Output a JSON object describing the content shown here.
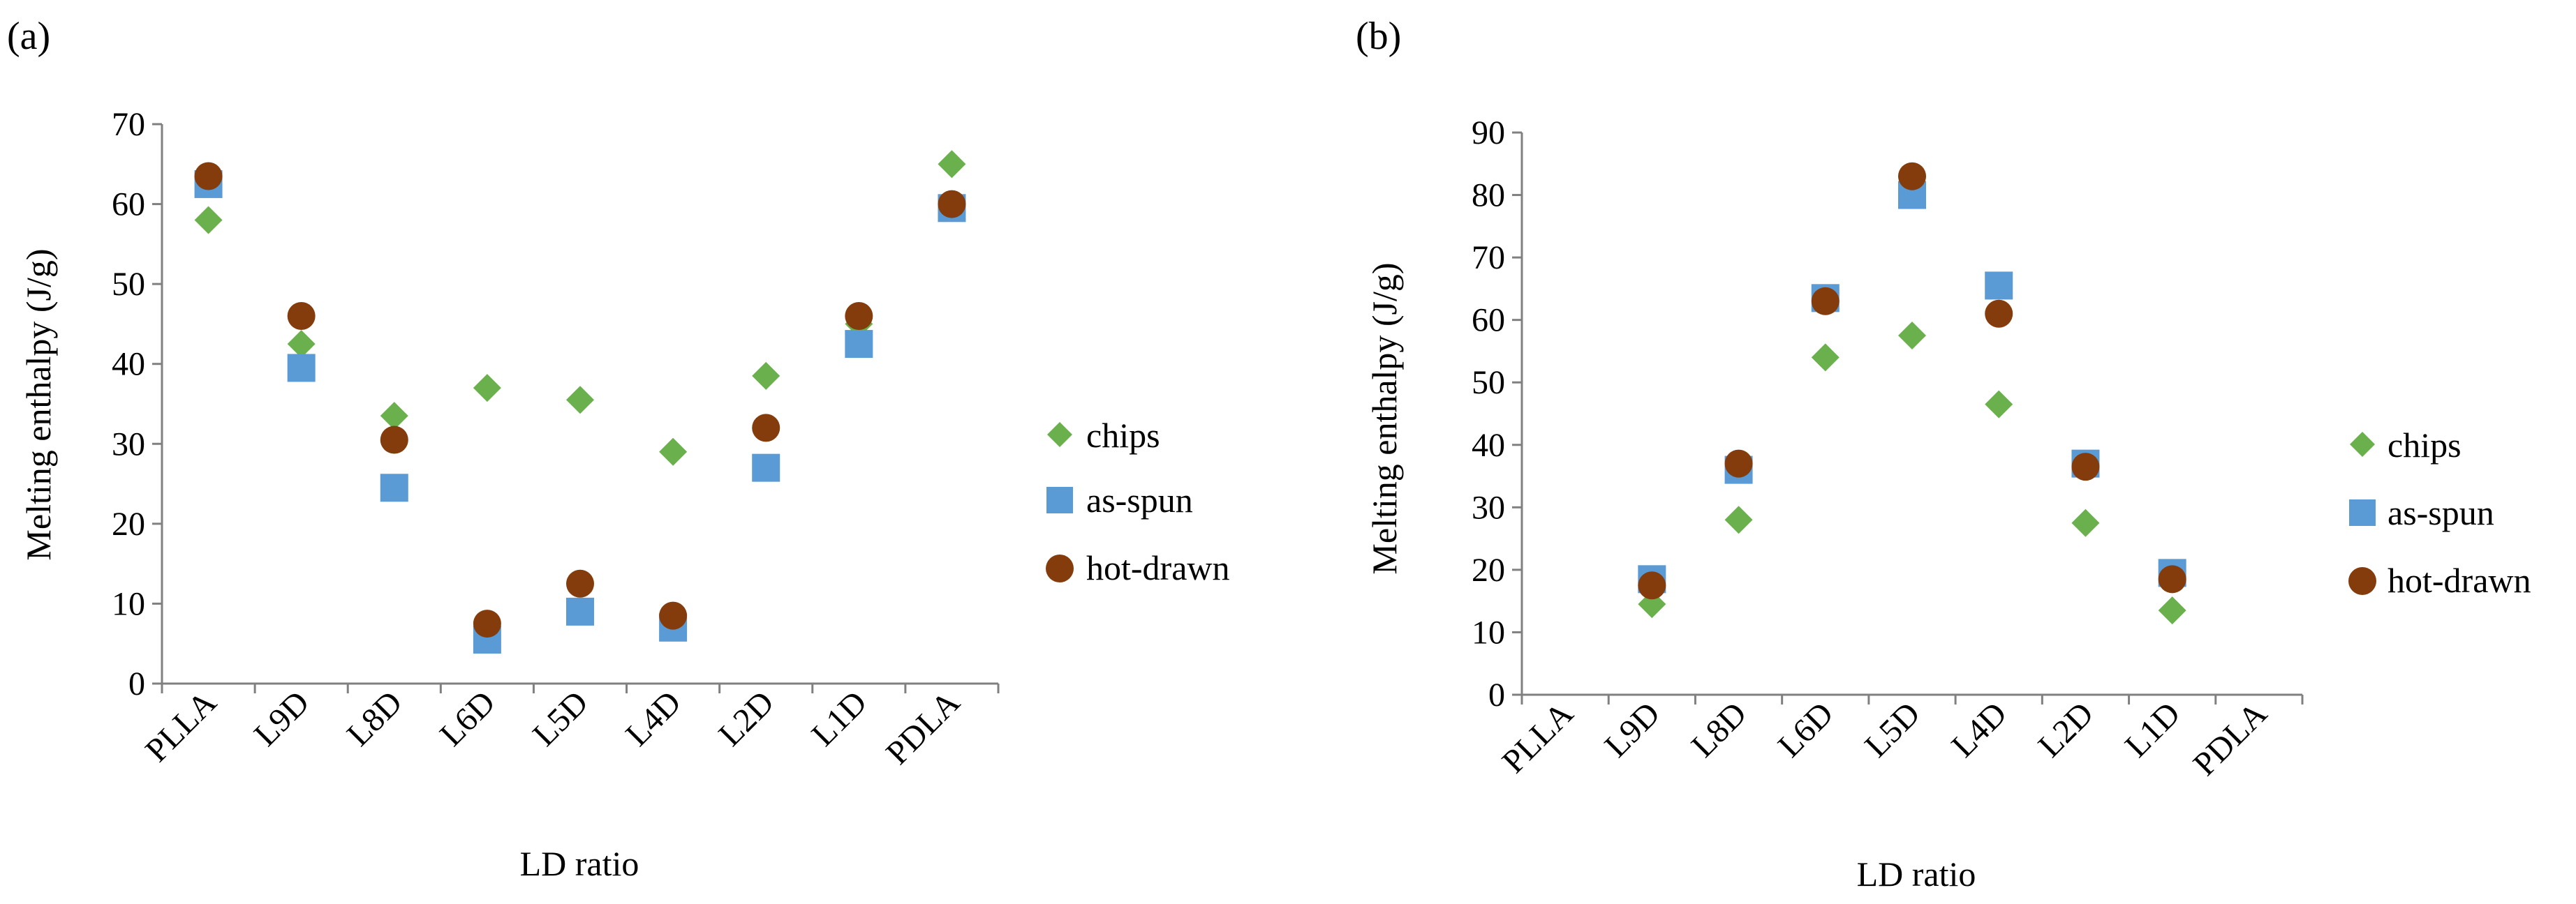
{
  "colors": {
    "chips": "#6ab04c",
    "as_spun": "#5b9bd5",
    "hot_drawn": "#843c0c",
    "axis": "#808080"
  },
  "chart_data": [
    {
      "type": "scatter",
      "panel_label": "(a)",
      "categories": [
        "PLLA",
        "L9D",
        "L8D",
        "L6D",
        "L5D",
        "L4D",
        "L2D",
        "L1D",
        "PDLA"
      ],
      "xlabel": "LD ratio",
      "ylabel": "Melting enthalpy (J/g)",
      "ylim": [
        0,
        70
      ],
      "yticks": [
        "0",
        "10",
        "20",
        "30",
        "40",
        "50",
        "60",
        "70"
      ],
      "legend_position": "right",
      "series": [
        {
          "name": "chips",
          "marker": "diamond",
          "values": [
            58,
            42.5,
            33.5,
            37,
            35.5,
            29,
            38.5,
            45,
            65
          ]
        },
        {
          "name": "as-spun",
          "marker": "square",
          "values": [
            62.5,
            39.5,
            24.5,
            5.5,
            9,
            7,
            27,
            42.5,
            59.5
          ]
        },
        {
          "name": "hot-drawn",
          "marker": "circle",
          "values": [
            63.5,
            46,
            30.5,
            7.5,
            12.5,
            8.5,
            32,
            46,
            60
          ]
        }
      ]
    },
    {
      "type": "scatter",
      "panel_label": "(b)",
      "categories": [
        "PLLA",
        "L9D",
        "L8D",
        "L6D",
        "L5D",
        "L4D",
        "L2D",
        "L1D",
        "PDLA"
      ],
      "xlabel": "LD ratio",
      "ylabel": "Melting enthalpy (J/g)",
      "ylim": [
        0,
        90
      ],
      "yticks": [
        "0",
        "10",
        "20",
        "30",
        "40",
        "50",
        "60",
        "70",
        "80",
        "90"
      ],
      "legend_position": "right",
      "series": [
        {
          "name": "chips",
          "marker": "diamond",
          "values": [
            null,
            14.5,
            28,
            54,
            57.5,
            46.5,
            27.5,
            13.5,
            null
          ]
        },
        {
          "name": "as-spun",
          "marker": "square",
          "values": [
            null,
            18.5,
            36,
            63.5,
            80,
            65.5,
            37,
            19.5,
            null
          ]
        },
        {
          "name": "hot-drawn",
          "marker": "circle",
          "values": [
            null,
            17.5,
            37,
            63,
            83,
            61,
            36.5,
            18.5,
            null
          ]
        }
      ]
    }
  ]
}
